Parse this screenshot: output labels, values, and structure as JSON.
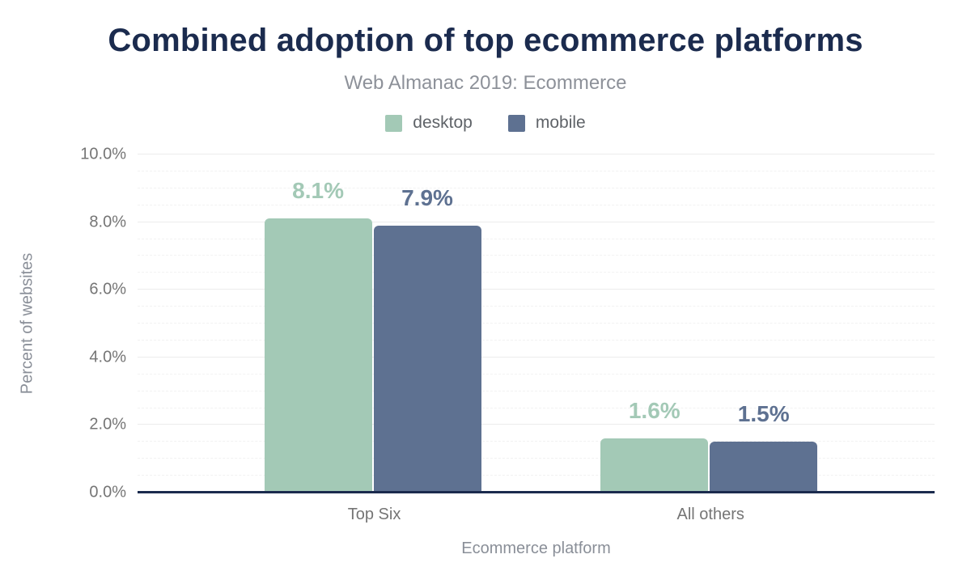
{
  "header": {
    "title": "Combined adoption of top ecommerce platforms",
    "subtitle": "Web Almanac 2019: Ecommerce"
  },
  "colors": {
    "title_text": "#1b2b4e",
    "axis_line": "#1b2b4e",
    "muted_text": "#757575",
    "axis_title_text": "#8a8f98",
    "desktop": "#a3c9b6",
    "mobile": "#5e7191"
  },
  "chart_data": {
    "type": "bar",
    "title": "Combined adoption of top ecommerce platforms",
    "subtitle": "Web Almanac 2019: Ecommerce",
    "categories": [
      "Top Six",
      "All others"
    ],
    "series": [
      {
        "name": "desktop",
        "color": "#a3c9b6",
        "values": [
          8.1,
          1.6
        ],
        "display_values": [
          "8.1%",
          "1.6%"
        ]
      },
      {
        "name": "mobile",
        "color": "#5e7191",
        "values": [
          7.9,
          1.5
        ],
        "display_values": [
          "7.9%",
          "1.5%"
        ]
      }
    ],
    "xlabel": "Ecommerce platform",
    "ylabel": "Percent of websites",
    "ylim": [
      0,
      10
    ],
    "ytick_labels": [
      "0.0%",
      "2.0%",
      "4.0%",
      "6.0%",
      "8.0%",
      "10.0%"
    ],
    "grid": {
      "minor_step": 0.5,
      "major_step": 2,
      "enabled": true
    },
    "legend_position": "top"
  }
}
